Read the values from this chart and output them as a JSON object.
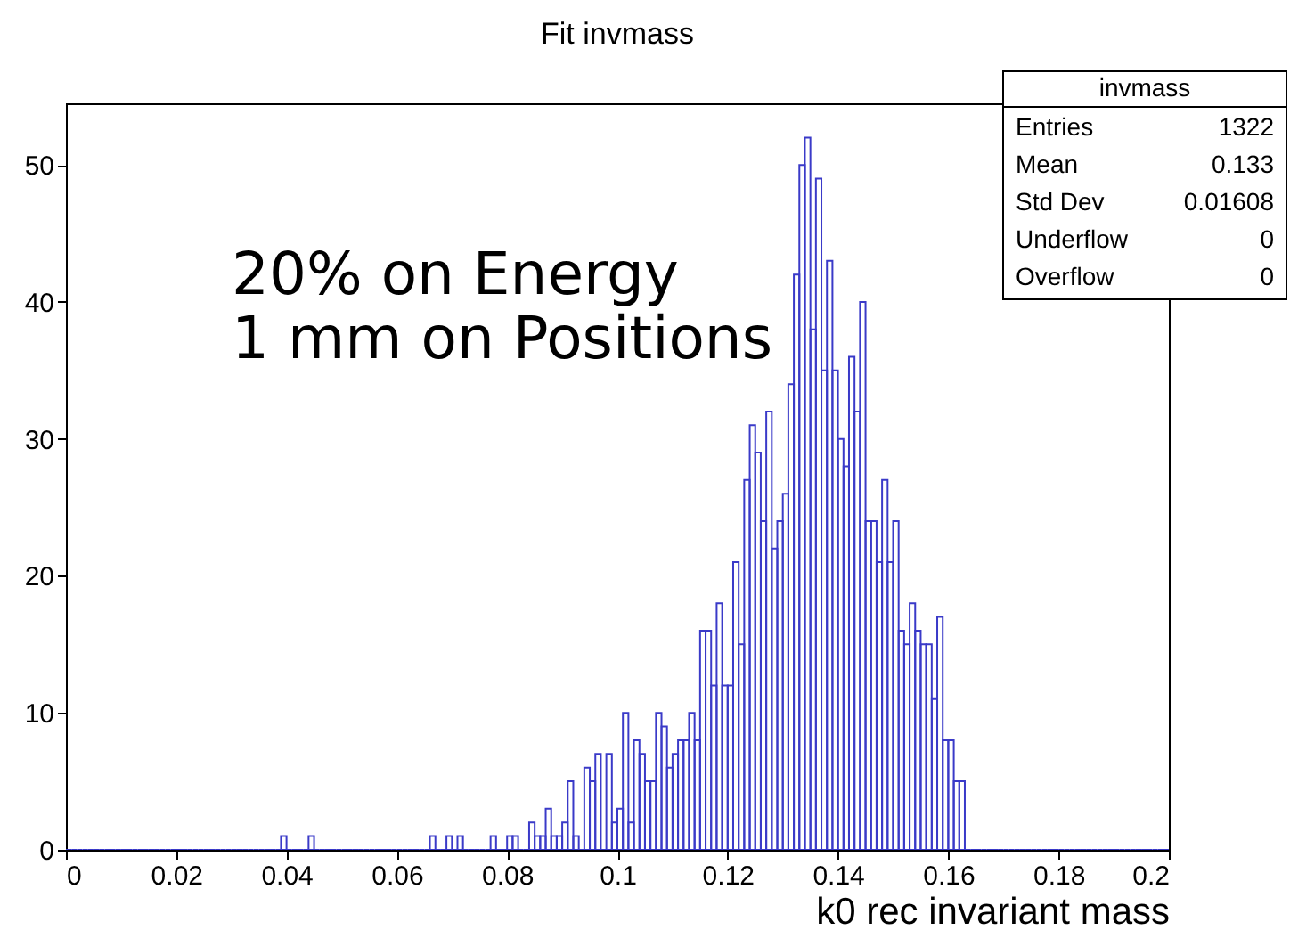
{
  "chart_data": {
    "type": "histogram",
    "title": "Fit invmass",
    "xlabel": "k0 rec invariant mass",
    "bins": [
      0,
      0.001,
      0.002,
      0.003,
      0.004,
      0.005,
      0.006,
      0.007,
      0.008,
      0.009,
      0.01,
      0.011,
      0.012,
      0.013,
      0.014,
      0.015,
      0.016,
      0.017,
      0.018,
      0.019,
      0.02,
      0.021,
      0.022,
      0.023,
      0.024,
      0.025,
      0.026,
      0.027,
      0.028,
      0.029,
      0.03,
      0.031,
      0.032,
      0.033,
      0.034,
      0.035,
      0.036,
      0.037,
      0.038,
      0.039,
      0.04,
      0.041,
      0.042,
      0.043,
      0.044,
      0.045,
      0.046,
      0.047,
      0.048,
      0.049,
      0.05,
      0.051,
      0.052,
      0.053,
      0.054,
      0.055,
      0.056,
      0.057,
      0.058,
      0.059,
      0.06,
      0.061,
      0.062,
      0.063,
      0.064,
      0.065,
      0.066,
      0.067,
      0.068,
      0.069,
      0.07,
      0.071,
      0.072,
      0.073,
      0.074,
      0.075,
      0.076,
      0.077,
      0.078,
      0.079,
      0.08,
      0.081,
      0.082,
      0.083,
      0.084,
      0.085,
      0.086,
      0.087,
      0.088,
      0.089,
      0.09,
      0.091,
      0.092,
      0.093,
      0.094,
      0.095,
      0.096,
      0.097,
      0.098,
      0.099,
      0.1,
      0.101,
      0.102,
      0.103,
      0.104,
      0.105,
      0.106,
      0.107,
      0.108,
      0.109,
      0.11,
      0.111,
      0.112,
      0.113,
      0.114,
      0.115,
      0.116,
      0.117,
      0.118,
      0.119,
      0.12,
      0.121,
      0.122,
      0.123,
      0.124,
      0.125,
      0.126,
      0.127,
      0.128,
      0.129,
      0.13,
      0.131,
      0.132,
      0.133,
      0.134,
      0.135,
      0.136,
      0.137,
      0.138,
      0.139,
      0.14,
      0.141,
      0.142,
      0.143,
      0.144,
      0.145,
      0.146,
      0.147,
      0.148,
      0.149,
      0.15,
      0.151,
      0.152,
      0.153,
      0.154,
      0.155,
      0.156,
      0.157,
      0.158,
      0.159,
      0.16,
      0.161,
      0.162,
      0.163,
      0.164,
      0.165,
      0.166,
      0.167,
      0.168,
      0.169,
      0.17,
      0.171,
      0.172,
      0.173,
      0.174,
      0.175,
      0.176,
      0.177,
      0.178,
      0.179,
      0.18,
      0.181,
      0.182,
      0.183,
      0.184,
      0.185,
      0.186,
      0.187,
      0.188,
      0.189,
      0.19,
      0.191,
      0.192,
      0.193,
      0.194,
      0.195,
      0.196,
      0.197,
      0.198,
      0.199,
      0.2
    ],
    "values": [
      0,
      0,
      0,
      0,
      0,
      0,
      0,
      0,
      0,
      0,
      0,
      0,
      0,
      0,
      0,
      0,
      0,
      0,
      0,
      0,
      0,
      0,
      0,
      0,
      0,
      0,
      0,
      0,
      0,
      0,
      0,
      0,
      0,
      0,
      0,
      0,
      0,
      0,
      0,
      1,
      0,
      0,
      0,
      0,
      1,
      0,
      0,
      0,
      0,
      0,
      0,
      0,
      0,
      0,
      0,
      0,
      0,
      0,
      0,
      0,
      0,
      0,
      0,
      0,
      0,
      0,
      1,
      0,
      0,
      1,
      0,
      1,
      0,
      0,
      0,
      0,
      0,
      1,
      0,
      0,
      1,
      1,
      0,
      0,
      2,
      1,
      1,
      3,
      1,
      1,
      2,
      5,
      1,
      0,
      6,
      5,
      7,
      0,
      7,
      2,
      3,
      10,
      2,
      8,
      7,
      5,
      5,
      10,
      9,
      6,
      7,
      8,
      8,
      10,
      8,
      16,
      16,
      12,
      18,
      12,
      12,
      21,
      15,
      27,
      31,
      29,
      24,
      32,
      22,
      24,
      26,
      34,
      42,
      50,
      52,
      38,
      49,
      35,
      43,
      35,
      30,
      28,
      36,
      32,
      40,
      24,
      24,
      21,
      27,
      21,
      24,
      16,
      15,
      18,
      16,
      15,
      15,
      11,
      17,
      8,
      8,
      5,
      5,
      0,
      0,
      0,
      0,
      0,
      0,
      0,
      0,
      0,
      0,
      0,
      0,
      0,
      0,
      0,
      0,
      0,
      0,
      0,
      0,
      0,
      0,
      0,
      0,
      0,
      0,
      0,
      0,
      0,
      0,
      0,
      0,
      0,
      0,
      0,
      0,
      0
    ],
    "color": "#3a3ac8",
    "xlim": [
      0,
      0.2
    ],
    "xticks": [
      0,
      0.02,
      0.04,
      0.06,
      0.08,
      0.1,
      0.12,
      0.14,
      0.16,
      0.18,
      0.2
    ],
    "ylim": [
      0,
      54.5
    ],
    "yticks": [
      0,
      10,
      20,
      30,
      40,
      50
    ],
    "annotations": [
      "20% on Energy",
      "1 mm on Positions",
      "invmass",
      "Entries",
      "1322",
      "Mean",
      "0.133",
      "Std Dev",
      "0.01608",
      "Underflow",
      "0",
      "Overflow",
      "0"
    ]
  }
}
